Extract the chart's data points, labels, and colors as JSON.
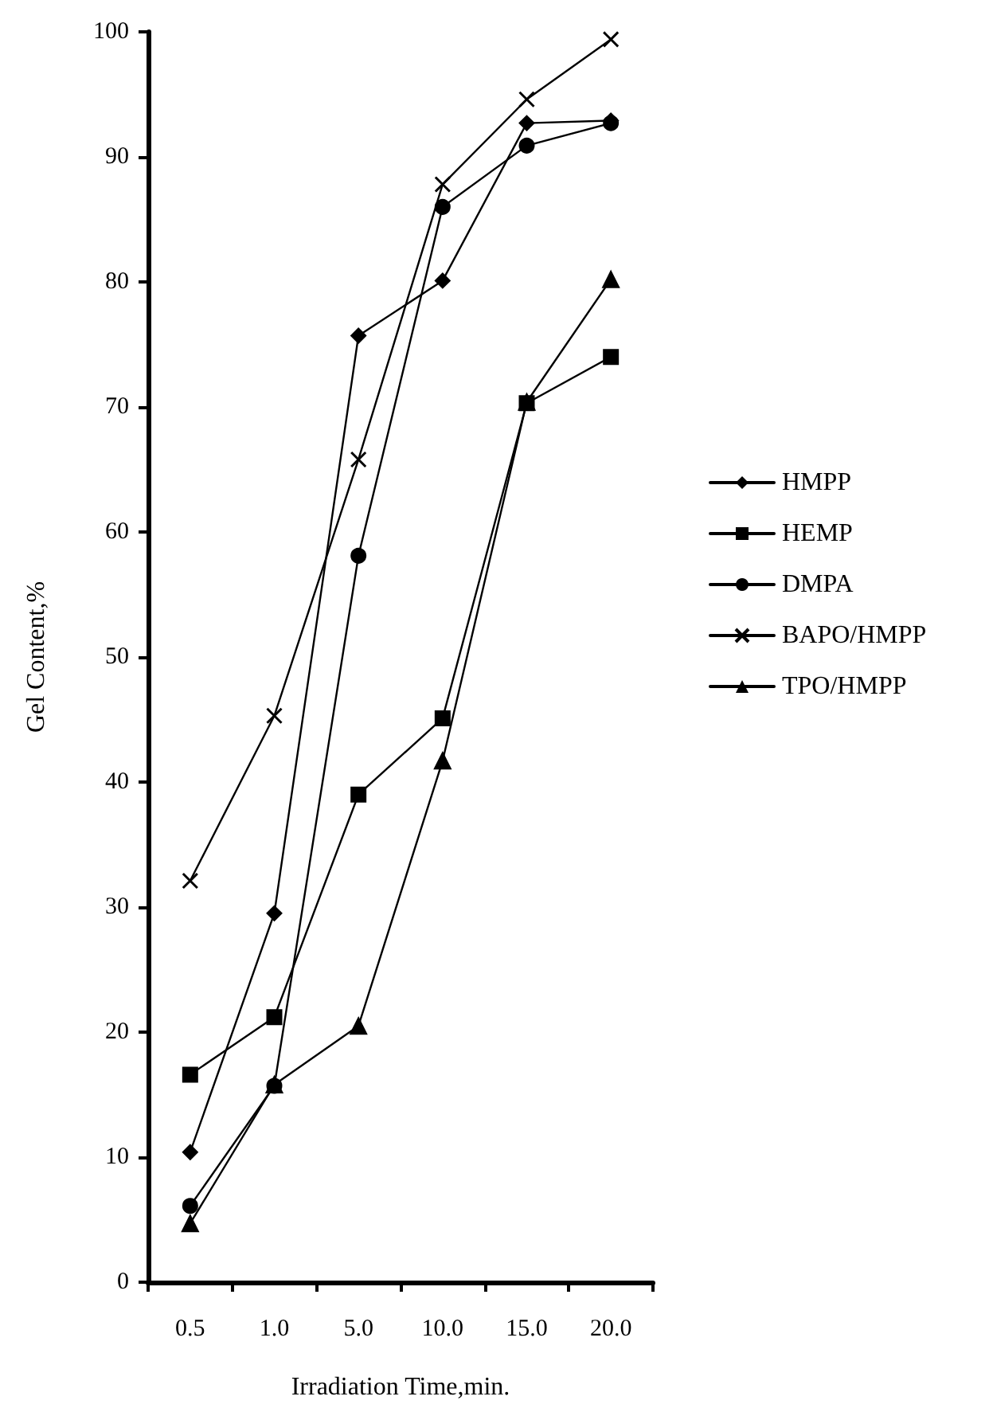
{
  "chart_data": {
    "type": "line",
    "xlabel": "Irradiation Time,min.",
    "ylabel": "Gel Content,%",
    "categories": [
      "0.5",
      "1.0",
      "5.0",
      "10.0",
      "15.0",
      "20.0"
    ],
    "series": [
      {
        "name": "HMPP",
        "color": "#000000",
        "marker": "diamond",
        "values": [
          10.4,
          29.5,
          75.7,
          80.1,
          92.7,
          92.9
        ]
      },
      {
        "name": "HEMP",
        "color": "#000000",
        "marker": "square",
        "values": [
          16.6,
          21.2,
          39.0,
          45.1,
          70.3,
          74.0
        ]
      },
      {
        "name": "DMPA",
        "color": "#000000",
        "marker": "circle",
        "values": [
          6.1,
          15.7,
          58.1,
          86.0,
          90.9,
          92.7
        ]
      },
      {
        "name": "BAPO/HMPP",
        "color": "#000000",
        "marker": "cross",
        "values": [
          32.1,
          45.3,
          65.8,
          87.8,
          94.6,
          99.4
        ]
      },
      {
        "name": "TPO/HMPP",
        "color": "#000000",
        "marker": "triangle",
        "values": [
          4.7,
          15.8,
          20.5,
          41.7,
          70.4,
          80.2
        ]
      }
    ],
    "ylim": [
      0,
      100
    ],
    "yticks": [
      0,
      10,
      20,
      30,
      40,
      50,
      60,
      70,
      80,
      90,
      100
    ],
    "grid": false,
    "legend": "right",
    "line_style": "solid"
  }
}
